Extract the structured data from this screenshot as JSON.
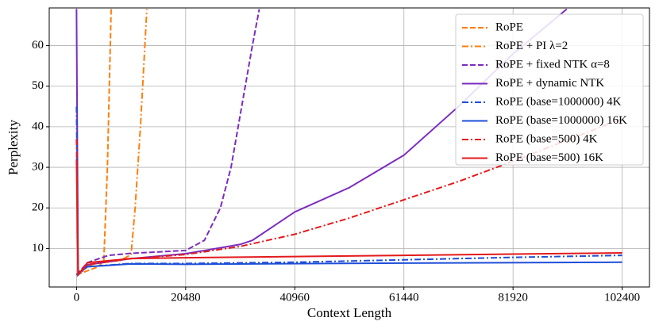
{
  "chart_data": {
    "type": "line",
    "xlabel": "Context Length",
    "ylabel": "Perplexity",
    "xlim": [
      -5120,
      107520
    ],
    "ylim": [
      0.5,
      69.3
    ],
    "xticks": [
      0,
      20480,
      40960,
      61440,
      81920,
      102400
    ],
    "yticks": [
      10,
      20,
      30,
      40,
      50,
      60
    ],
    "grid": true,
    "legend": "upper right",
    "series": [
      {
        "name": "RoPE",
        "color": "#ff7f0e",
        "linestyle": "dashed",
        "x": [
          0,
          2048,
          4096,
          5120,
          5800,
          6500
        ],
        "values": [
          3.5,
          4.5,
          5.5,
          7,
          30,
          69
        ]
      },
      {
        "name": "RoPE + PI λ=2",
        "color": "#ff7f0e",
        "linestyle": "dashdot",
        "x": [
          0,
          2048,
          4096,
          8192,
          10240,
          11000,
          12000,
          13200
        ],
        "values": [
          3.5,
          5.5,
          6.5,
          7,
          8.5,
          20,
          40,
          69
        ]
      },
      {
        "name": "RoPE + fixed NTK α=8",
        "color": "#7b2cbf",
        "linestyle": "dashed",
        "x": [
          0,
          2048,
          6000,
          10240,
          20480,
          24000,
          27000,
          29000,
          31000,
          33000,
          34300
        ],
        "values": [
          3.5,
          6.5,
          8.3,
          8.8,
          9.5,
          12,
          20,
          30,
          45,
          60,
          69
        ]
      },
      {
        "name": "RoPE + dynamic NTK",
        "color": "#7b2cbf",
        "linestyle": "solid",
        "x": [
          0,
          300,
          2048,
          10240,
          20480,
          30720,
          33000,
          40960,
          51200,
          61440,
          71680,
          81920,
          92000
        ],
        "values": [
          69,
          3.5,
          6,
          7.5,
          8.7,
          11,
          12,
          19,
          25,
          33,
          45,
          58,
          69
        ]
      },
      {
        "name": "RoPE (base=1000000) 4K",
        "color": "#1f4fd8",
        "linestyle": "dashdot",
        "x": [
          0,
          300,
          2048,
          10240,
          20480,
          40960,
          61440,
          81920,
          102400
        ],
        "values": [
          45,
          3.5,
          5.5,
          6.3,
          6.3,
          6.6,
          7.2,
          7.8,
          8.3
        ]
      },
      {
        "name": "RoPE (base=1000000) 16K",
        "color": "#1f4fd8",
        "linestyle": "solid",
        "x": [
          0,
          2048,
          10240,
          20480,
          61440,
          102400
        ],
        "values": [
          3.5,
          5.5,
          6.2,
          6.1,
          6.4,
          6.6
        ]
      },
      {
        "name": "RoPE (base=500) 4K",
        "color": "#e31a1c",
        "linestyle": "dashdot",
        "x": [
          0,
          300,
          2048,
          10240,
          20480,
          30720,
          40960,
          51200,
          61440,
          71680,
          81920,
          102400
        ],
        "values": [
          37,
          3.5,
          6,
          7.5,
          8.5,
          10.5,
          13.5,
          17.5,
          22,
          26.5,
          31.5,
          42
        ]
      },
      {
        "name": "RoPE (base=500) 16K",
        "color": "#e31a1c",
        "linestyle": "solid",
        "x": [
          0,
          300,
          2048,
          10240,
          20480,
          40960,
          61440,
          81920,
          102400
        ],
        "values": [
          32,
          3.5,
          6.5,
          7.5,
          7.7,
          8.0,
          8.3,
          8.6,
          8.9
        ]
      }
    ]
  }
}
